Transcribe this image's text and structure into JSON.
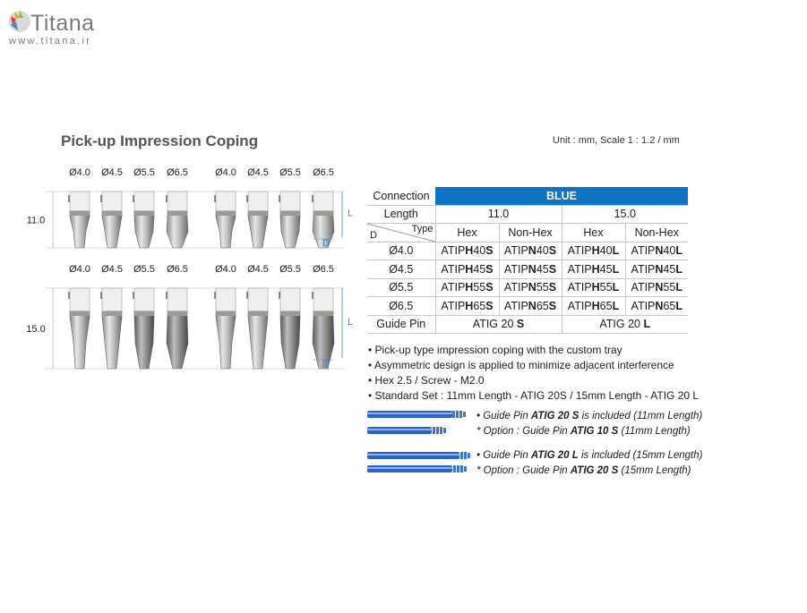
{
  "logo": {
    "name": "Titana",
    "url": "www.titana.ir"
  },
  "title": "Pick-up Impression Coping",
  "unit": "Unit : mm,  Scale 1 : 1.2 / mm",
  "drawing": {
    "diameters": [
      "Ø4.0",
      "Ø4.5",
      "Ø5.5",
      "Ø6.5",
      "Ø4.0",
      "Ø4.5",
      "Ø5.5",
      "Ø6.5"
    ],
    "row_lengths": [
      "11.0",
      "15.0"
    ],
    "dim_L": "L",
    "dim_D": "D"
  },
  "table": {
    "connection_label": "Connection",
    "connection_value": "BLUE",
    "length_label": "Length",
    "lengths": [
      "11.0",
      "15.0"
    ],
    "d_label": "D",
    "type_label": "Type",
    "types": [
      "Hex",
      "Non-Hex",
      "Hex",
      "Non-Hex"
    ],
    "rows": [
      {
        "d": "Ø4.0",
        "c": [
          [
            "ATIP",
            "H",
            "40",
            "S"
          ],
          [
            "ATIP",
            "N",
            "40",
            "S"
          ],
          [
            "ATIP",
            "H",
            "40",
            "L"
          ],
          [
            "ATIP",
            "N",
            "40",
            "L"
          ]
        ]
      },
      {
        "d": "Ø4.5",
        "c": [
          [
            "ATIP",
            "H",
            "45",
            "S"
          ],
          [
            "ATIP",
            "N",
            "45",
            "S"
          ],
          [
            "ATIP",
            "H",
            "45",
            "L"
          ],
          [
            "ATIP",
            "N",
            "45",
            "L"
          ]
        ]
      },
      {
        "d": "Ø5.5",
        "c": [
          [
            "ATIP",
            "H",
            "55",
            "S"
          ],
          [
            "ATIP",
            "N",
            "55",
            "S"
          ],
          [
            "ATIP",
            "H",
            "55",
            "L"
          ],
          [
            "ATIP",
            "N",
            "55",
            "L"
          ]
        ]
      },
      {
        "d": "Ø6.5",
        "c": [
          [
            "ATIP",
            "H",
            "65",
            "S"
          ],
          [
            "ATIP",
            "N",
            "65",
            "S"
          ],
          [
            "ATIP",
            "H",
            "65",
            "L"
          ],
          [
            "ATIP",
            "N",
            "65",
            "L"
          ]
        ]
      }
    ],
    "guide_label": "Guide Pin",
    "guide": [
      [
        "ATIG 20 ",
        "S"
      ],
      [
        "ATIG 20 ",
        "L"
      ]
    ]
  },
  "bullets": [
    "Pick-up type impression coping with the custom tray",
    "Asymmetric design is applied to minimize adjacent interference",
    "Hex 2.5 / Screw -  M2.0",
    "Standard Set : 11mm Length - ATIG 20S  / 15mm Length - ATIG 20 L"
  ],
  "pin_notes": [
    {
      "pre": "• Guide Pin ",
      "bold": "ATIG 20 S",
      "post": " is included (11mm Length)"
    },
    {
      "pre": "* Option : Guide Pin ",
      "bold": "ATIG 10 S",
      "post": " (11mm Length)"
    },
    {
      "pre": "• Guide Pin ",
      "bold": "ATIG 20 L",
      "post": " is included (15mm Length)"
    },
    {
      "pre": "* Option : Guide Pin ",
      "bold": "ATIG 20 S",
      "post": " (15mm Length)"
    }
  ],
  "colors": {
    "accent_blue": "#0d73c3",
    "pin_blue": "#2d63c8",
    "text_gray": "#555555"
  }
}
